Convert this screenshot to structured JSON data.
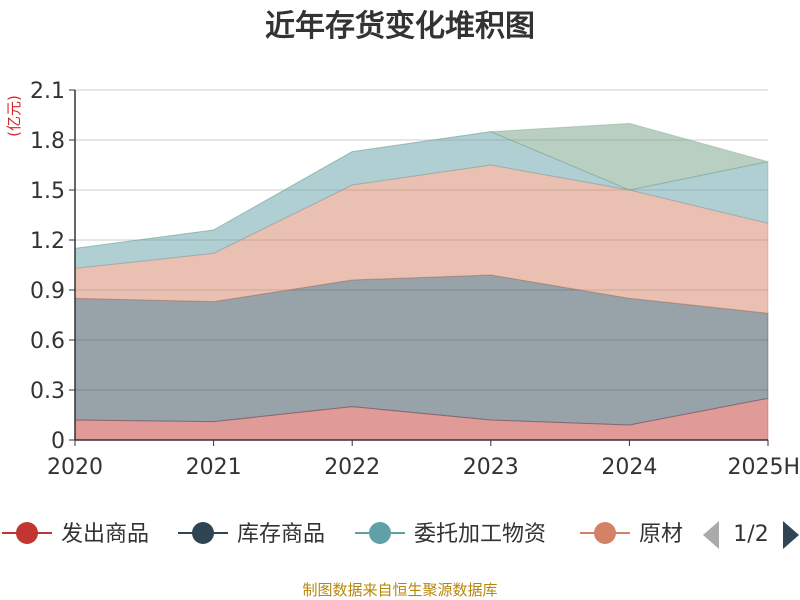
{
  "chart_data": {
    "type": "area",
    "stacked": true,
    "title": "近年存货变化堆积图",
    "unit_label": "(亿元)",
    "x": [
      "2020",
      "2021",
      "2022",
      "2023",
      "2024",
      "2025H"
    ],
    "y_ticks": [
      "0",
      "0.3",
      "0.6",
      "0.9",
      "1.2",
      "1.5",
      "1.8",
      "2.1"
    ],
    "ylim": [
      0,
      2.1
    ],
    "grid": true,
    "series": [
      {
        "name": "发出商品",
        "color": "#c23531",
        "values": [
          0.12,
          0.11,
          0.2,
          0.12,
          0.09,
          0.25
        ]
      },
      {
        "name": "库存商品",
        "color": "#2f4554",
        "values": [
          0.73,
          0.72,
          0.76,
          0.87,
          0.76,
          0.51
        ]
      },
      {
        "name": "原材料",
        "color": "#d48265",
        "values": [
          0.18,
          0.29,
          0.57,
          0.66,
          0.65,
          0.54
        ]
      },
      {
        "name": "委托加工物资",
        "color": "#61a0a8",
        "values": [
          0.12,
          0.14,
          0.2,
          0.2,
          0.0,
          0.37
        ]
      },
      {
        "name": "",
        "color": "#749f83",
        "values": [
          0.0,
          0.0,
          0.0,
          0.0,
          0.4,
          0.0
        ]
      }
    ],
    "legend": {
      "placement": "bottom",
      "items": [
        "发出商品",
        "库存商品",
        "委托加工物资",
        "原材"
      ],
      "page": "1/2"
    },
    "source": "制图数据来自恒生聚源数据库"
  }
}
